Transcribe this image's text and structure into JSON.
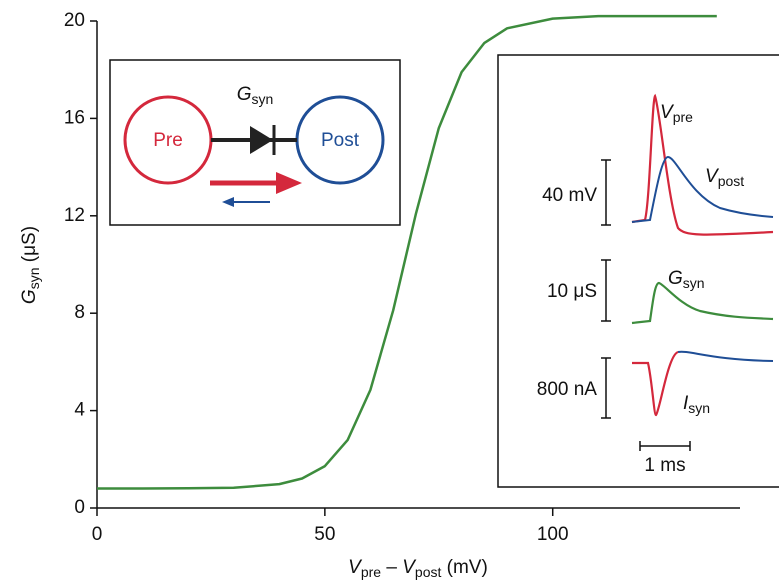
{
  "chart_data": {
    "type": "line",
    "x": [
      0,
      10,
      20,
      30,
      40,
      45,
      50,
      55,
      60,
      65,
      70,
      75,
      80,
      85,
      90,
      100,
      110,
      120,
      136
    ],
    "values": [
      0.8,
      0.8,
      0.81,
      0.83,
      0.98,
      1.21,
      1.72,
      2.79,
      4.85,
      8.12,
      12.1,
      15.6,
      17.9,
      19.1,
      19.7,
      20.1,
      20.2,
      20.2,
      20.2
    ],
    "color": "#3d8c3d",
    "xlim": [
      0,
      140
    ],
    "ylim": [
      0,
      20
    ],
    "xticks": [
      0,
      50,
      100
    ],
    "yticks": [
      0,
      4,
      8,
      12,
      16,
      20
    ],
    "xlabel": [
      "V",
      "pre",
      " – ",
      "V",
      "post",
      " (mV)"
    ],
    "ylabel": [
      "G",
      "syn",
      " (μS)"
    ]
  },
  "diagram": {
    "pre": "Pre",
    "post": "Post",
    "conductance": [
      "G",
      "syn"
    ]
  },
  "inset": {
    "v_pre": [
      "V",
      "pre"
    ],
    "v_post": [
      "V",
      "post"
    ],
    "g_syn": [
      "G",
      "syn"
    ],
    "i_syn": [
      "I",
      "syn"
    ],
    "scale_voltage": "40 mV",
    "scale_conductance": "10 μS",
    "scale_current": "800 nA",
    "scale_time": "1 ms"
  }
}
